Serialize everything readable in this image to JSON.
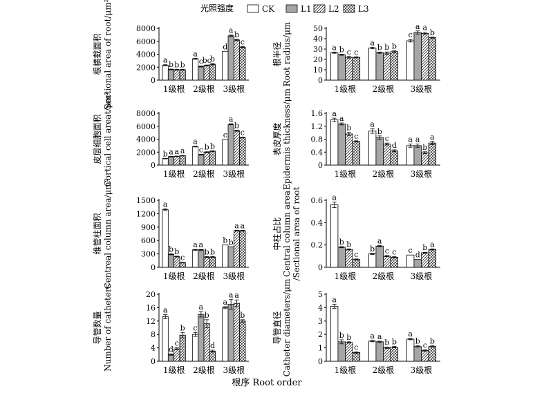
{
  "figure": {
    "legend_title": "光照强度",
    "legend": [
      {
        "name": "CK",
        "fill": "#ffffff",
        "pattern": "none"
      },
      {
        "name": "L1",
        "fill": "#a6a6a6",
        "pattern": "none"
      },
      {
        "name": "L2",
        "fill": "#ffffff",
        "pattern": "diagonal-hatch"
      },
      {
        "name": "L3",
        "fill": "#ffffff",
        "pattern": "crosshatch"
      }
    ],
    "xaxis_title": "根序 Root order",
    "colors": {
      "axis": "#000000",
      "CK": "#ffffff",
      "L1": "#a6a6a6"
    }
  },
  "chart_data": [
    {
      "type": "bar",
      "ylabel": [
        "根横截面积",
        "Sectional area of root/μm²"
      ],
      "categories": [
        "1级根",
        "2级根",
        "3级根"
      ],
      "ylim": [
        0,
        8000
      ],
      "yticks": [
        0,
        2000,
        4000,
        6000,
        8000
      ],
      "series": [
        {
          "name": "CK",
          "values": [
            2300,
            3300,
            4450
          ],
          "errors": [
            80,
            80,
            0
          ],
          "letters": [
            "a",
            "a",
            "d"
          ]
        },
        {
          "name": "L1",
          "values": [
            1650,
            2100,
            6850
          ],
          "errors": [
            60,
            80,
            120
          ],
          "letters": [
            "b",
            "c",
            "a"
          ]
        },
        {
          "name": "L2",
          "values": [
            1600,
            2250,
            6200
          ],
          "errors": [
            60,
            80,
            100
          ],
          "letters": [
            "b",
            "bc",
            "b"
          ]
        },
        {
          "name": "L3",
          "values": [
            1600,
            2450,
            5100
          ],
          "errors": [
            60,
            100,
            100
          ],
          "letters": [
            "b",
            "b",
            "c"
          ]
        }
      ]
    },
    {
      "type": "bar",
      "ylabel": [
        "根半径",
        "Root radius/μm"
      ],
      "categories": [
        "1级根",
        "2级根",
        "3级根"
      ],
      "ylim": [
        0,
        50
      ],
      "yticks": [
        0,
        10,
        20,
        30,
        40,
        50
      ],
      "series": [
        {
          "name": "CK",
          "values": [
            26.5,
            31,
            38
          ],
          "errors": [
            0.6,
            0.8,
            1.2
          ],
          "letters": [
            "a",
            "a",
            "c"
          ]
        },
        {
          "name": "L1",
          "values": [
            24.5,
            26.5,
            46
          ],
          "errors": [
            0.5,
            0.6,
            1.5
          ],
          "letters": [
            "b",
            "b",
            "a"
          ]
        },
        {
          "name": "L2",
          "values": [
            22,
            26,
            45
          ],
          "errors": [
            0.8,
            1.2,
            1.2
          ],
          "letters": [
            "c",
            "b",
            "a"
          ]
        },
        {
          "name": "L3",
          "values": [
            22,
            27.5,
            41
          ],
          "errors": [
            0.5,
            0.8,
            0.5
          ],
          "letters": [
            "c",
            "b",
            "b"
          ]
        }
      ]
    },
    {
      "type": "bar",
      "ylabel": [
        "皮层细胞面积",
        "Cortical cell areat/μm²"
      ],
      "categories": [
        "1级根",
        "2级根",
        "3级根"
      ],
      "ylim": [
        0,
        8000
      ],
      "yticks": [
        0,
        2000,
        4000,
        6000,
        8000
      ],
      "series": [
        {
          "name": "CK",
          "values": [
            1000,
            2850,
            3950
          ],
          "errors": [
            40,
            60,
            0
          ],
          "letters": [
            "b",
            "a",
            "c"
          ]
        },
        {
          "name": "L1",
          "values": [
            1300,
            1600,
            6300
          ],
          "errors": [
            40,
            60,
            80
          ],
          "letters": [
            "a",
            "c",
            "a"
          ]
        },
        {
          "name": "L2",
          "values": [
            1350,
            2000,
            5300
          ],
          "errors": [
            40,
            60,
            80
          ],
          "letters": [
            "a",
            "b",
            "b"
          ]
        },
        {
          "name": "L3",
          "values": [
            1450,
            2150,
            4250
          ],
          "errors": [
            40,
            60,
            60
          ],
          "letters": [
            "a",
            "b",
            "c"
          ]
        }
      ]
    },
    {
      "type": "bar",
      "ylabel": [
        "表皮厚度",
        "Epidermis thickness/μm"
      ],
      "categories": [
        "1级根",
        "2级根",
        "3级根"
      ],
      "ylim": [
        0,
        1.6
      ],
      "yticks": [
        0,
        0.4,
        0.8,
        1.2,
        1.6
      ],
      "series": [
        {
          "name": "CK",
          "values": [
            1.4,
            1.05,
            0.6
          ],
          "errors": [
            0.05,
            0.07,
            0.05
          ],
          "letters": [
            "a",
            "a",
            "a"
          ]
        },
        {
          "name": "L1",
          "values": [
            1.27,
            0.85,
            0.6
          ],
          "errors": [
            0.03,
            0.05,
            0.05
          ],
          "letters": [
            "a",
            "b",
            "a"
          ]
        },
        {
          "name": "L2",
          "values": [
            0.96,
            0.65,
            0.38
          ],
          "errors": [
            0.05,
            0.03,
            0.03
          ],
          "letters": [
            "b",
            "c",
            "b"
          ]
        },
        {
          "name": "L3",
          "values": [
            0.73,
            0.44,
            0.68
          ],
          "errors": [
            0.02,
            0.03,
            0.05
          ],
          "letters": [
            "c",
            "d",
            "a"
          ]
        }
      ]
    },
    {
      "type": "bar",
      "ylabel": [
        "维管柱面积",
        "Centreal column area/μm²"
      ],
      "categories": [
        "1级根",
        "2级根",
        "3级根"
      ],
      "ylim": [
        0,
        1500
      ],
      "yticks": [
        0,
        300,
        600,
        900,
        1200,
        1500
      ],
      "series": [
        {
          "name": "CK",
          "values": [
            1290,
            390,
            500
          ],
          "errors": [
            20,
            10,
            0
          ],
          "letters": [
            "a",
            "a",
            "b"
          ]
        },
        {
          "name": "L1",
          "values": [
            290,
            390,
            460
          ],
          "errors": [
            10,
            10,
            0
          ],
          "letters": [
            "b",
            "a",
            "b"
          ]
        },
        {
          "name": "L2",
          "values": [
            240,
            230,
            820
          ],
          "errors": [
            10,
            10,
            10
          ],
          "letters": [
            "b",
            "b",
            "a"
          ]
        },
        {
          "name": "L3",
          "values": [
            110,
            230,
            820
          ],
          "errors": [
            5,
            10,
            10
          ],
          "letters": [
            "c",
            "b",
            "a"
          ]
        }
      ]
    },
    {
      "type": "bar",
      "ylabel": [
        "中柱占比",
        "Central column area",
        "/Sectional area of root"
      ],
      "categories": [
        "1级根",
        "2级根",
        "3级根"
      ],
      "ylim": [
        0,
        0.6
      ],
      "yticks": [
        0,
        0.2,
        0.4,
        0.6
      ],
      "series": [
        {
          "name": "CK",
          "values": [
            0.56,
            0.12,
            0.11
          ],
          "errors": [
            0.025,
            0.005,
            0
          ],
          "letters": [
            "a",
            "b",
            "c"
          ]
        },
        {
          "name": "L1",
          "values": [
            0.18,
            0.19,
            0.07
          ],
          "errors": [
            0.005,
            0.005,
            0
          ],
          "letters": [
            "b",
            "a",
            "d"
          ]
        },
        {
          "name": "L2",
          "values": [
            0.16,
            0.1,
            0.13
          ],
          "errors": [
            0.005,
            0.005,
            0.005
          ],
          "letters": [
            "b",
            "c",
            "b"
          ]
        },
        {
          "name": "L3",
          "values": [
            0.07,
            0.09,
            0.16
          ],
          "errors": [
            0.005,
            0.005,
            0.005
          ],
          "letters": [
            "c",
            "c",
            "a"
          ]
        }
      ]
    },
    {
      "type": "bar",
      "ylabel": [
        "导管数量",
        "Number of catheters"
      ],
      "categories": [
        "1级根",
        "2级根",
        "3级根"
      ],
      "ylim": [
        0,
        20
      ],
      "yticks": [
        0,
        4,
        8,
        12,
        16,
        20
      ],
      "series": [
        {
          "name": "CK",
          "values": [
            13.3,
            8.0,
            16.0
          ],
          "errors": [
            0.6,
            0.6,
            0.3
          ],
          "letters": [
            "a",
            "c",
            "a"
          ]
        },
        {
          "name": "L1",
          "values": [
            2.0,
            14.0,
            17.0
          ],
          "errors": [
            0.2,
            0.8,
            1.5
          ],
          "letters": [
            "d",
            "a",
            "a"
          ]
        },
        {
          "name": "L2",
          "values": [
            3.7,
            11.2,
            17.3
          ],
          "errors": [
            0.3,
            1.2,
            1.0
          ],
          "letters": [
            "c",
            "b",
            "a"
          ]
        },
        {
          "name": "L3",
          "values": [
            7.8,
            3.0,
            12.0
          ],
          "errors": [
            0.8,
            0.3,
            0.4
          ],
          "letters": [
            "b",
            "d",
            "b"
          ]
        }
      ]
    },
    {
      "type": "bar",
      "ylabel": [
        "导管直径",
        "Catheter diameters/μm"
      ],
      "categories": [
        "1级根",
        "2级根",
        "3级根"
      ],
      "ylim": [
        0,
        5
      ],
      "yticks": [
        0,
        1,
        2,
        3,
        4,
        5
      ],
      "series": [
        {
          "name": "CK",
          "values": [
            4.1,
            1.5,
            1.65
          ],
          "errors": [
            0.15,
            0.05,
            0.05
          ],
          "letters": [
            "a",
            "a",
            "a"
          ]
        },
        {
          "name": "L1",
          "values": [
            1.45,
            1.45,
            1.1
          ],
          "errors": [
            0.15,
            0.05,
            0.05
          ],
          "letters": [
            "b",
            "a",
            "b"
          ]
        },
        {
          "name": "L2",
          "values": [
            1.4,
            1.0,
            0.8
          ],
          "errors": [
            0.05,
            0.05,
            0.05
          ],
          "letters": [
            "b",
            "b",
            "c"
          ]
        },
        {
          "name": "L3",
          "values": [
            0.65,
            1.05,
            1.1
          ],
          "errors": [
            0.05,
            0.05,
            0.05
          ],
          "letters": [
            "c",
            "b",
            "b"
          ]
        }
      ]
    }
  ]
}
